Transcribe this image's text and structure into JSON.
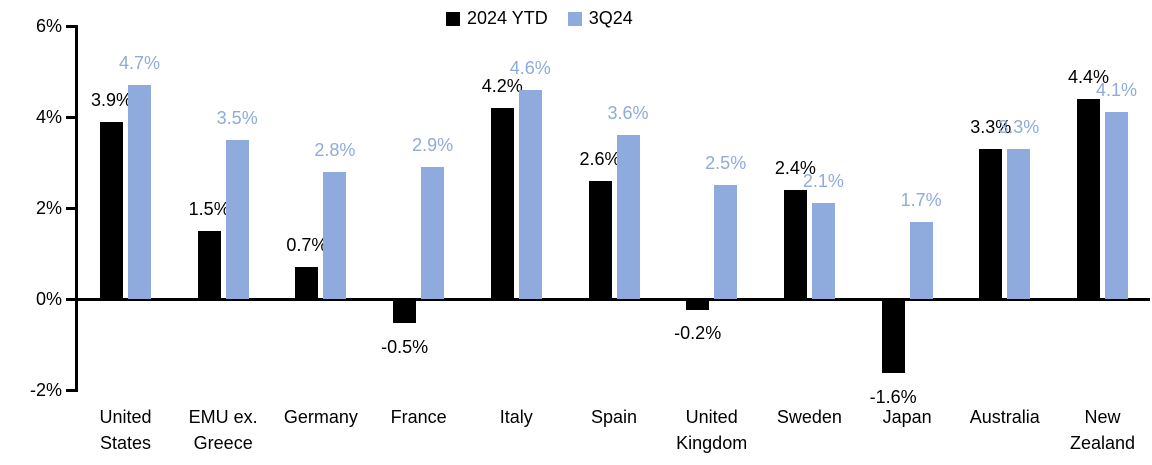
{
  "chart_data": {
    "type": "bar",
    "title": "",
    "categories": [
      "United States",
      "EMU ex. Greece",
      "Germany",
      "France",
      "Italy",
      "Spain",
      "United Kingdom",
      "Sweden",
      "Japan",
      "Australia",
      "New Zealand"
    ],
    "category_lines": [
      [
        "United",
        "States"
      ],
      [
        "EMU ex.",
        "Greece"
      ],
      [
        "Germany"
      ],
      [
        "France"
      ],
      [
        "Italy"
      ],
      [
        "Spain"
      ],
      [
        "United",
        "Kingdom"
      ],
      [
        "Sweden"
      ],
      [
        "Japan"
      ],
      [
        "Australia"
      ],
      [
        "New",
        "Zealand"
      ]
    ],
    "series": [
      {
        "name": "2024 YTD",
        "color": "#000000",
        "label_color": "#000000",
        "values": [
          3.9,
          1.5,
          0.7,
          -0.5,
          4.2,
          2.6,
          -0.2,
          2.4,
          -1.6,
          3.3,
          4.4
        ],
        "labels": [
          "3.9%",
          "1.5%",
          "0.7%",
          "-0.5%",
          "4.2%",
          "2.6%",
          "-0.2%",
          "2.4%",
          "-1.6%",
          "3.3%",
          "4.4%"
        ]
      },
      {
        "name": "3Q24",
        "color": "#8FAADC",
        "label_color": "#8FAADC",
        "values": [
          4.7,
          3.5,
          2.8,
          2.9,
          4.6,
          3.6,
          2.5,
          2.1,
          1.7,
          3.3,
          4.1
        ],
        "labels": [
          "4.7%",
          "3.5%",
          "2.8%",
          "2.9%",
          "4.6%",
          "3.6%",
          "2.5%",
          "2.1%",
          "1.7%",
          "3.3%",
          "4.1%"
        ]
      }
    ],
    "xlabel": "",
    "ylabel": "",
    "y_axis": {
      "min": -2,
      "max": 6,
      "step": 2,
      "tick_labels": [
        "6%",
        "4%",
        "2%",
        "0%",
        "-2%"
      ]
    },
    "ylim": [
      -2,
      6
    ],
    "grid": false,
    "legend_position": "top-center",
    "data_label_format": "0.0%",
    "colors": {
      "axis": "#000000",
      "background": "#FFFFFF",
      "series_2024_ytd": "#000000",
      "series_3q24": "#8FAADC"
    }
  }
}
